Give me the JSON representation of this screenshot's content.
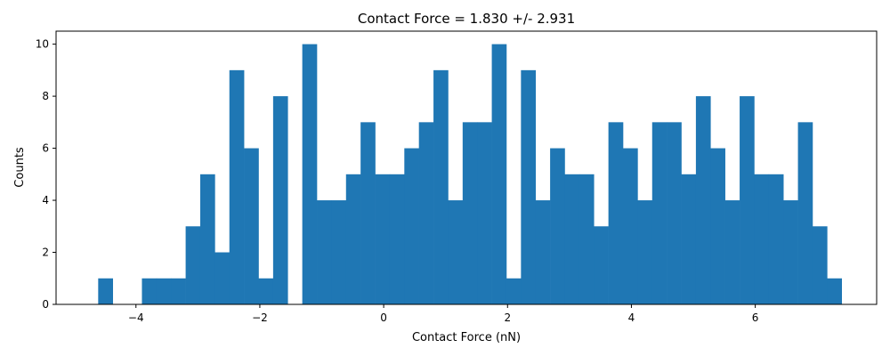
{
  "chart_data": {
    "type": "bar",
    "title": "Contact Force = 1.830 +/- 2.931",
    "xlabel": "Contact Force (nN)",
    "ylabel": "Counts",
    "xlim": [
      -5.29,
      7.96
    ],
    "ylim": [
      0,
      10.5
    ],
    "xticks": [
      -4,
      -2,
      0,
      2,
      4,
      6
    ],
    "xtick_labels": [
      "−4",
      "−2",
      "0",
      "2",
      "4",
      "6"
    ],
    "yticks": [
      0,
      2,
      4,
      6,
      8,
      10
    ],
    "ytick_labels": [
      "0",
      "2",
      "4",
      "6",
      "8",
      "10"
    ],
    "grid": false,
    "bar_color": "#1f77b4",
    "bin_start": -4.61,
    "bin_width": 0.2354,
    "counts": [
      1,
      0,
      0,
      1,
      1,
      1,
      3,
      5,
      2,
      9,
      6,
      1,
      8,
      0,
      10,
      4,
      4,
      5,
      7,
      5,
      5,
      6,
      7,
      9,
      4,
      7,
      7,
      10,
      1,
      9,
      4,
      6,
      5,
      5,
      3,
      7,
      6,
      4,
      7,
      7,
      5,
      8,
      6,
      4,
      8,
      5,
      5,
      4,
      7,
      3,
      1
    ]
  }
}
